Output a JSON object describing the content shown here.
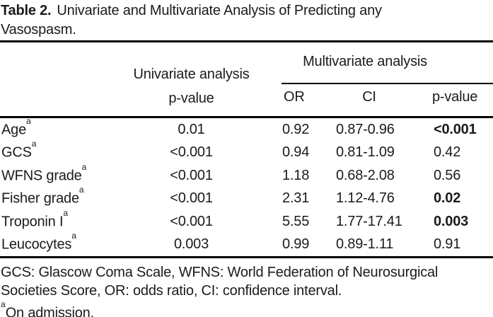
{
  "caption": {
    "table_number": "Table 2.",
    "title_line1": "Univariate and Multivariate Analysis of Predicting any",
    "title_line2": "Vasospasm."
  },
  "table": {
    "headers": {
      "univariate_line1": "Univariate analysis",
      "univariate_line2": "p-value",
      "multivariate_group": "Multivariate analysis",
      "or": "OR",
      "ci": "CI",
      "p_value": "p-value"
    },
    "rows": [
      {
        "label": "Age",
        "sup": "a",
        "uni_p": "0.01",
        "or": "0.92",
        "ci": "0.87-0.96",
        "p": "<0.001",
        "p_bold": true
      },
      {
        "label": "GCS",
        "sup": "a",
        "uni_p": "<0.001",
        "or": "0.94",
        "ci": "0.81-1.09",
        "p": "0.42",
        "p_bold": false
      },
      {
        "label": "WFNS grade",
        "sup": "a",
        "uni_p": "<0.001",
        "or": "1.18",
        "ci": "0.68-2.08",
        "p": "0.56",
        "p_bold": false
      },
      {
        "label": "Fisher grade",
        "sup": "a",
        "uni_p": "<0.001",
        "or": "2.31",
        "ci": "1.12-4.76",
        "p": "0.02",
        "p_bold": true
      },
      {
        "label": "Troponin I",
        "sup": "a",
        "uni_p": "<0.001",
        "or": "5.55",
        "ci": "1.77-17.41",
        "p": "0.003",
        "p_bold": true
      },
      {
        "label": "Leucocytes",
        "sup": "a",
        "uni_p": "0.003",
        "or": "0.99",
        "ci": "0.89-1.11",
        "p": "0.91",
        "p_bold": false
      }
    ]
  },
  "footnotes": {
    "abbrev_line1": "GCS: Glascow Coma Scale, WFNS: World Federation of Neurosurgical",
    "abbrev_line2": "Societies Score, OR: odds ratio, CI: confidence interval.",
    "admission_sup": "a",
    "admission_text": "On admission."
  },
  "colors": {
    "text": "#1b1b1b",
    "background": "#ffffff",
    "rule": "#000000"
  }
}
